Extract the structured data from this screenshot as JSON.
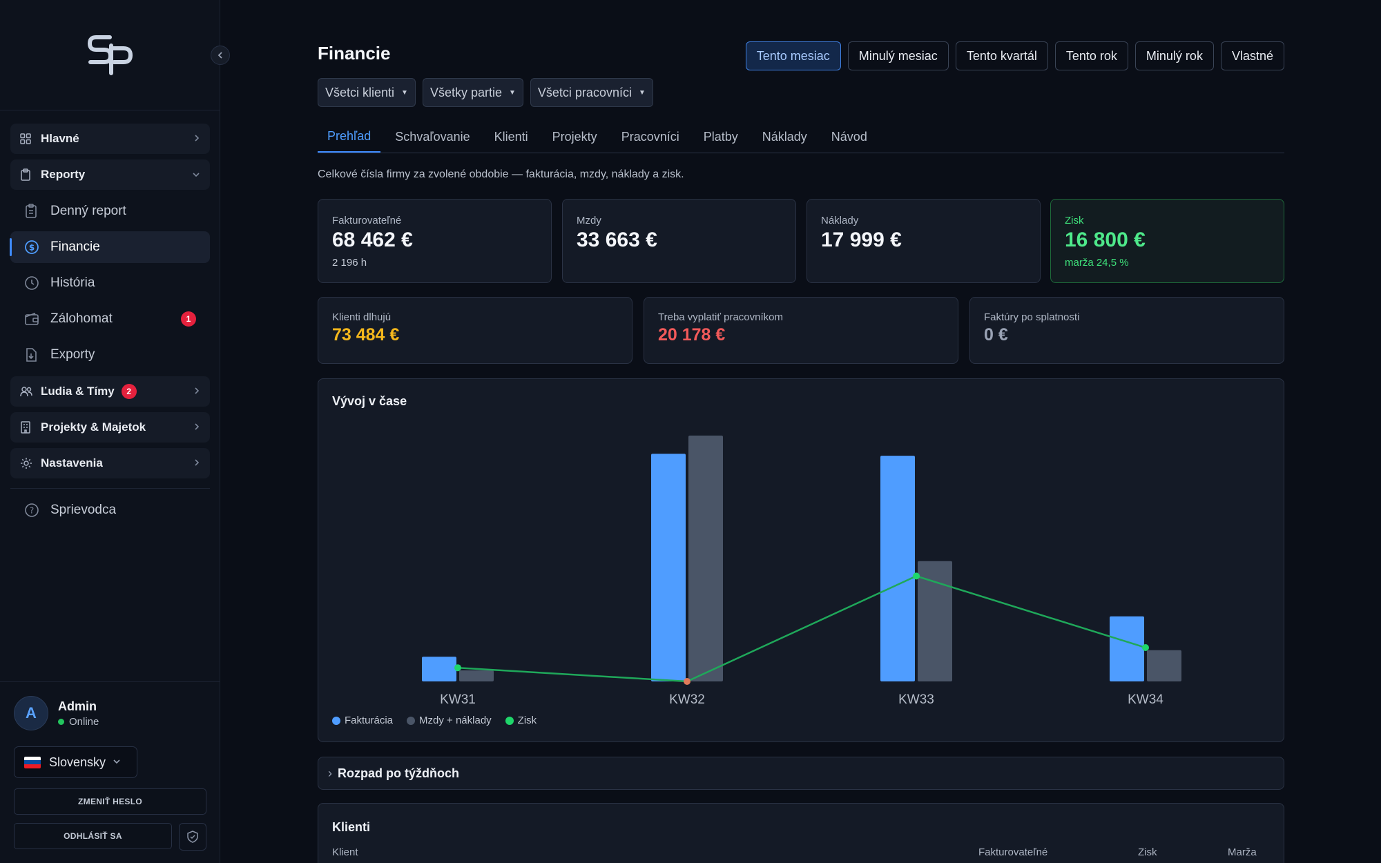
{
  "sidebar": {
    "groups": {
      "main": {
        "label": "Hlavné"
      },
      "reports": {
        "label": "Reporty"
      },
      "people": {
        "label": "Ľudia & Tímy",
        "badge": "2"
      },
      "projects": {
        "label": "Projekty & Majetok"
      },
      "settings": {
        "label": "Nastavenia"
      }
    },
    "items": {
      "daily": {
        "label": "Denný report"
      },
      "finance": {
        "label": "Financie"
      },
      "history": {
        "label": "História"
      },
      "deposit": {
        "label": "Zálohomat",
        "badge": "1"
      },
      "exports": {
        "label": "Exporty"
      },
      "guide": {
        "label": "Sprievodca"
      }
    },
    "user": {
      "name": "Admin",
      "status": "Online",
      "avatar": "A"
    },
    "language": "Slovensky",
    "change_password": "ZMENIŤ HESLO",
    "logout": "ODHLÁSIŤ SA"
  },
  "header": {
    "title": "Financie",
    "periods": [
      "Tento mesiac",
      "Minulý mesiac",
      "Tento kvartál",
      "Tento rok",
      "Minulý rok",
      "Vlastné"
    ],
    "active_period": "Tento mesiac",
    "filters": {
      "clients": "Všetci klienti",
      "crews": "Všetky partie",
      "workers": "Všetci pracovníci"
    }
  },
  "tabs": [
    "Prehľad",
    "Schvaľovanie",
    "Klienti",
    "Projekty",
    "Pracovníci",
    "Platby",
    "Náklady",
    "Návod"
  ],
  "description": "Celkové čísla firmy za zvolené obdobie — fakturácia, mzdy, náklady a zisk.",
  "kpis": {
    "billable": {
      "label": "Fakturovateľné",
      "value": "68 462 €",
      "sub": "2 196 h"
    },
    "wages": {
      "label": "Mzdy",
      "value": "33 663 €"
    },
    "costs": {
      "label": "Náklady",
      "value": "17 999 €"
    },
    "profit": {
      "label": "Zisk",
      "value": "16 800 €",
      "sub": "marža 24,5 %"
    }
  },
  "balances": {
    "receivables": {
      "label": "Klienti dlhujú",
      "value": "73 484 €"
    },
    "to_pay": {
      "label": "Treba vyplatiť pracovníkom",
      "value": "20 178 €"
    },
    "overdue": {
      "label": "Faktúry po splatnosti",
      "value": "0 €"
    }
  },
  "colors": {
    "accent": "#3f8cff",
    "billing": "#4f9dff",
    "costs": "#4a5567",
    "profit": "#1fbf62",
    "receivables": "#f5b81c",
    "to_pay": "#f25a5a"
  },
  "chart_data": {
    "type": "bar",
    "title": "Vývoj v čase",
    "categories": [
      "KW31",
      "KW32",
      "KW33",
      "KW34"
    ],
    "series": [
      {
        "name": "Fakturácia",
        "type": "bar",
        "values": [
          3800,
          35000,
          34700,
          10000
        ]
      },
      {
        "name": "Mzdy + náklady",
        "type": "bar",
        "values": [
          1700,
          37800,
          18500,
          4800
        ]
      },
      {
        "name": "Zisk",
        "type": "line",
        "values": [
          2100,
          0,
          16200,
          5200
        ]
      }
    ],
    "ylim": [
      0,
      38000
    ],
    "grid": false,
    "legend": "bottom-left"
  },
  "breakdown": {
    "label": "Rozpad po týždňoch"
  },
  "clients": {
    "title": "Klienti",
    "columns": {
      "client": "Klient",
      "billable": "Fakturovateľné",
      "profit": "Zisk",
      "margin": "Marža"
    }
  }
}
